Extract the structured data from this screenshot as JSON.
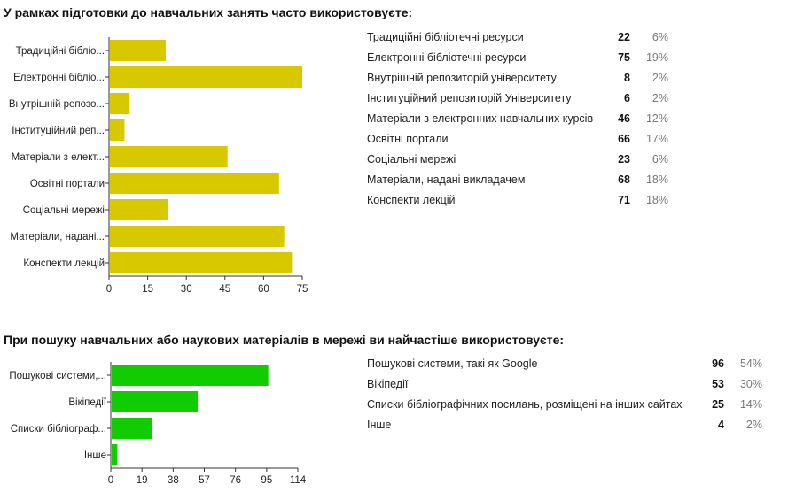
{
  "chart_data": [
    {
      "type": "bar",
      "orientation": "horizontal",
      "title": "У рамках підготовки до навчальних занять часто використовуєте:",
      "categories": [
        "Традиційні бібліо...",
        "Електронні бібліо...",
        "Внутрішній репозо...",
        "Інституційний реп...",
        "Матеріали з елект...",
        "Освітні портали",
        "Соціальні мережі",
        "Матеріали, надані...",
        "Конспекти лекцій"
      ],
      "values": [
        22,
        75,
        8,
        6,
        46,
        66,
        23,
        68,
        71
      ],
      "x_ticks": [
        "0",
        "15",
        "30",
        "45",
        "60",
        "75"
      ],
      "xlim": [
        0,
        75
      ],
      "bar_color": "#d8c800",
      "legend": [
        {
          "label": "Традиційні бібліотечні ресурси",
          "count": "22",
          "percent": "6%"
        },
        {
          "label": "Електронні бібліотечні ресурси",
          "count": "75",
          "percent": "19%"
        },
        {
          "label": "Внутрішній репозиторій університету",
          "count": "8",
          "percent": "2%"
        },
        {
          "label": "Інституційний репозиторій Університету",
          "count": "6",
          "percent": "2%"
        },
        {
          "label": "Матеріали з електронних навчальних курсів",
          "count": "46",
          "percent": "12%"
        },
        {
          "label": "Освітні портали",
          "count": "66",
          "percent": "17%"
        },
        {
          "label": "Соціальні мережі",
          "count": "23",
          "percent": "6%"
        },
        {
          "label": "Матеріали, надані викладачем",
          "count": "68",
          "percent": "18%"
        },
        {
          "label": "Конспекти лекцій",
          "count": "71",
          "percent": "18%"
        }
      ]
    },
    {
      "type": "bar",
      "orientation": "horizontal",
      "title": "При пошуку навчальних або наукових матеріалів в мережі ви найчастіше використовуєте:",
      "categories": [
        "Пошукові системи,...",
        "Вікіпедії",
        "Списки бібліограф...",
        "Інше"
      ],
      "values": [
        96,
        53,
        25,
        4
      ],
      "x_ticks": [
        "0",
        "19",
        "38",
        "57",
        "76",
        "95",
        "114"
      ],
      "xlim": [
        0,
        114
      ],
      "bar_color": "#11cc00",
      "legend": [
        {
          "label": "Пошукові системи, такі як Google",
          "count": "96",
          "percent": "54%"
        },
        {
          "label": "Вікіпедії",
          "count": "53",
          "percent": "30%"
        },
        {
          "label": "Списки бібліографічних посилань, розміщені на інших сайтах",
          "count": "25",
          "percent": "14%"
        },
        {
          "label": "Інше",
          "count": "4",
          "percent": "2%"
        }
      ]
    }
  ]
}
